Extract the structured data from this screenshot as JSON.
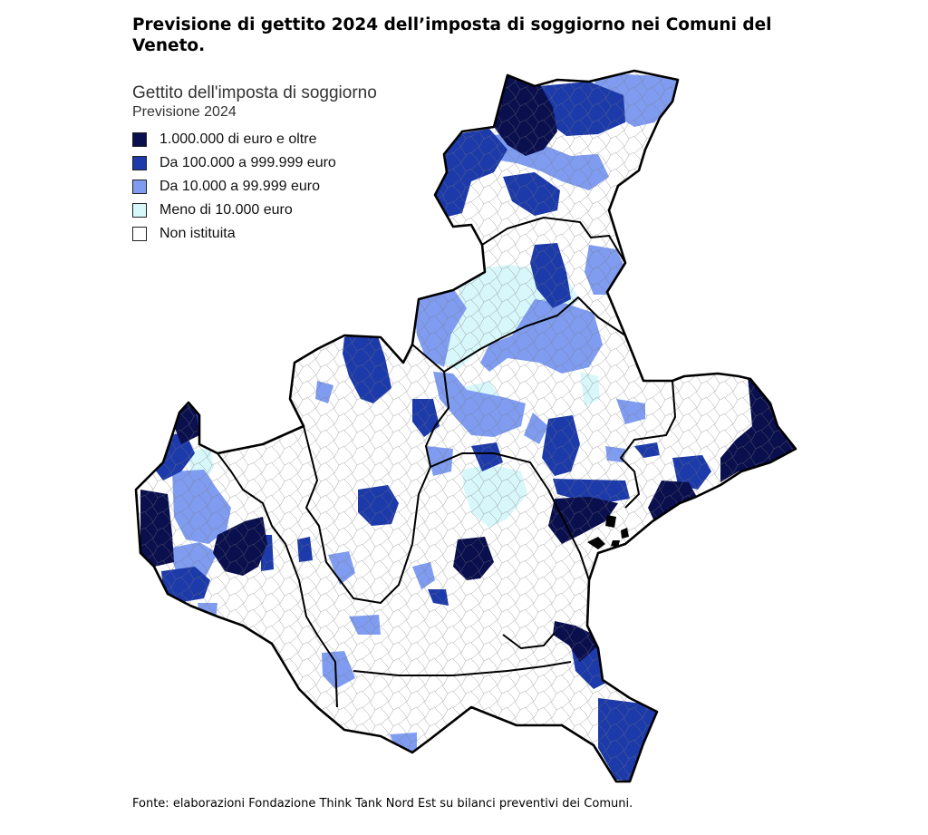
{
  "title": "Previsione di gettito 2024 dell’imposta di soggiorno nei Comuni del Veneto.",
  "legend": {
    "title": "Gettito dell'imposta di soggiorno",
    "subtitle": "Previsione 2024",
    "items": [
      {
        "label": "1.000.000 di euro e oltre",
        "color": "#0a0f4e"
      },
      {
        "label": "Da 100.000 a 999.999 euro",
        "color": "#1c3aa9"
      },
      {
        "label": "Da 10.000 a 99.999 euro",
        "color": "#7f9cf0"
      },
      {
        "label": "Meno di 10.000 euro",
        "color": "#d8f7fa"
      },
      {
        "label": "Non istituita",
        "color": "#ffffff"
      }
    ]
  },
  "source": "Fonte: elaborazioni Fondazione Think Tank Nord Est su bilanci preventivi dei Comuni."
}
